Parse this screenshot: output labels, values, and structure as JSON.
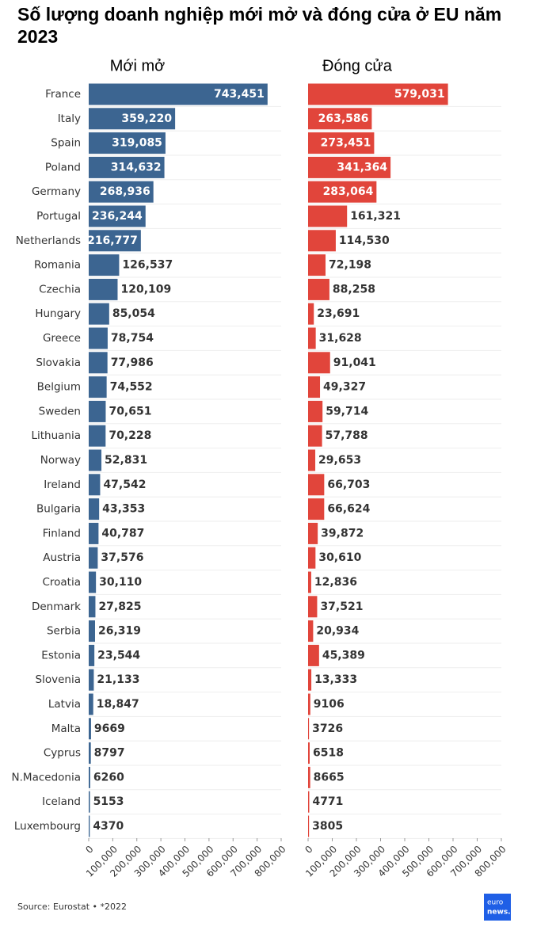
{
  "title": "Số lượng doanh nghiệp mới mở và đóng cửa ở EU năm 2023",
  "source": "Source: Eurostat • *2022",
  "logo": [
    "euro",
    "news."
  ],
  "chart_data": [
    {
      "type": "bar",
      "title": "Mới mở",
      "color": "#3c6591",
      "categories": [
        "France",
        "Italy",
        "Spain",
        "Poland",
        "Germany",
        "Portugal",
        "Netherlands",
        "Romania",
        "Czechia",
        "Hungary",
        "Greece",
        "Slovakia",
        "Belgium",
        "Sweden",
        "Lithuania",
        "Norway",
        "Ireland",
        "Bulgaria",
        "Finland",
        "Austria",
        "Croatia",
        "Denmark",
        "Serbia",
        "Estonia",
        "Slovenia",
        "Latvia",
        "Malta",
        "Cyprus",
        "N.Macedonia",
        "Iceland",
        "Luxembourg"
      ],
      "values": [
        743451,
        359220,
        319085,
        314632,
        268936,
        236244,
        216777,
        126537,
        120109,
        85054,
        78754,
        77986,
        74552,
        70651,
        70228,
        52831,
        47542,
        43353,
        40787,
        37576,
        30110,
        27825,
        26319,
        23544,
        21133,
        18847,
        9669,
        8797,
        6260,
        5153,
        4370
      ],
      "value_labels": [
        "743,451",
        "359,220",
        "319,085",
        "314,632",
        "268,936",
        "236,244",
        "216,777",
        "126,537",
        "120,109",
        "85,054",
        "78,754",
        "77,986",
        "74,552",
        "70,651",
        "70,228",
        "52,831",
        "47,542",
        "43,353",
        "40,787",
        "37,576",
        "30,110",
        "27,825",
        "26,319",
        "23,544",
        "21,133",
        "18,847",
        "9669",
        "8797",
        "6260",
        "5153",
        "4370"
      ],
      "xlim": [
        0,
        800000
      ],
      "xticks": [
        0,
        {
          "value": 100000,
          "label": "100,000"
        },
        {
          "value": 200000,
          "label": "200,000"
        },
        {
          "value": 300000,
          "label": "300,000"
        },
        {
          "value": 400000,
          "label": "400,000"
        },
        {
          "value": 500000,
          "label": "500,000"
        },
        {
          "value": 600000,
          "label": "600,000"
        },
        {
          "value": 700000,
          "label": "700,000"
        },
        {
          "value": 800000,
          "label": "800,000"
        }
      ]
    },
    {
      "type": "bar",
      "title": "Đóng cửa",
      "color": "#e1453b",
      "values": [
        579031,
        263586,
        273451,
        341364,
        283064,
        161321,
        114530,
        72198,
        88258,
        23691,
        31628,
        91041,
        49327,
        59714,
        57788,
        29653,
        66703,
        66624,
        39872,
        30610,
        12836,
        37521,
        20934,
        45389,
        13333,
        9106,
        3726,
        6518,
        8665,
        4771,
        3805
      ],
      "value_labels": [
        "579,031",
        "263,586",
        "273,451",
        "341,364",
        "283,064",
        "161,321",
        "114,530",
        "72,198",
        "88,258",
        "23,691",
        "31,628",
        "91,041",
        "49,327",
        "59,714",
        "57,788",
        "29,653",
        "66,703",
        "66,624",
        "39,872",
        "30,610",
        "12,836",
        "37,521",
        "20,934",
        "45,389",
        "13,333",
        "9106",
        "3726",
        "6518",
        "8665",
        "4771",
        "3805"
      ],
      "xlim": [
        0,
        800000
      ],
      "xticks": [
        0,
        {
          "value": 100000,
          "label": "100,000"
        },
        {
          "value": 200000,
          "label": "200,000"
        },
        {
          "value": 300000,
          "label": "300,000"
        },
        {
          "value": 400000,
          "label": "400,000"
        },
        {
          "value": 500000,
          "label": "500,000"
        },
        {
          "value": 600000,
          "label": "600,000"
        },
        {
          "value": 700000,
          "label": "700,000"
        },
        {
          "value": 800000,
          "label": "800,000"
        }
      ]
    }
  ]
}
